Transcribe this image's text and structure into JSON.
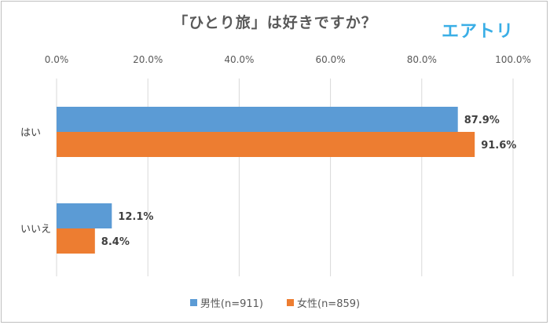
{
  "brand": "エアトリ",
  "colors": {
    "male": "#5b9bd5",
    "female": "#ed7d31",
    "grid": "#d9d9d9"
  },
  "chart_data": {
    "type": "bar",
    "orientation": "horizontal",
    "title": "「ひとり旅」は好きですか？",
    "categories": [
      "はい",
      "いいえ"
    ],
    "series": [
      {
        "name": "男性(n=911)",
        "values": [
          87.9,
          12.1
        ],
        "labels": [
          "87.9%",
          "12.1%"
        ]
      },
      {
        "name": "女性(n=859)",
        "values": [
          91.6,
          8.4
        ],
        "labels": [
          "91.6%",
          "8.4%"
        ]
      }
    ],
    "xlim": [
      0,
      100
    ],
    "xticks": [
      "0.0%",
      "20.0%",
      "40.0%",
      "60.0%",
      "80.0%",
      "100.0%"
    ],
    "grid": true,
    "legend": "bottom"
  }
}
